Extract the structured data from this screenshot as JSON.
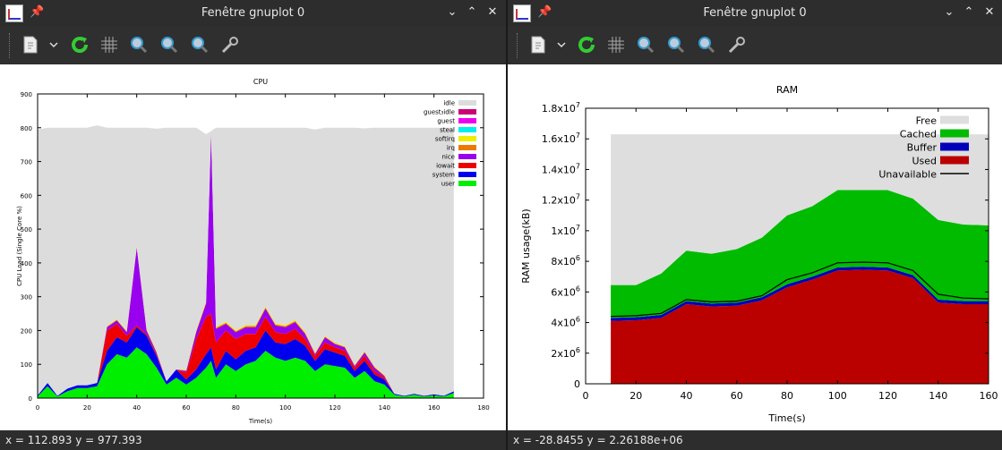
{
  "left_window": {
    "title": "Fenêtre gnuplot 0",
    "status": "x = 112.893 y = 977.393"
  },
  "right_window": {
    "title": "Fenêtre gnuplot 0",
    "status": "x = -28.8455 y = 2.26188e+06"
  },
  "window_controls": [
    "chevron-down-icon",
    "chevron-up-icon",
    "close-icon"
  ],
  "toolbar_icons": [
    "export-icon",
    "dropdown-arrow-icon",
    "replot-icon",
    "grid-icon",
    "zoom-prev-icon",
    "zoom-next-icon",
    "unzoom-icon",
    "settings-wrench-icon"
  ],
  "chart_data": [
    {
      "type": "area",
      "stacked": true,
      "title": "CPU",
      "xlabel": "Time(s)",
      "ylabel": "CPU Load (Single Core %)",
      "xlim": [
        0,
        180
      ],
      "ylim": [
        0,
        900
      ],
      "xticks": [
        0,
        20,
        40,
        60,
        80,
        100,
        120,
        140,
        160,
        180
      ],
      "yticks": [
        0,
        100,
        200,
        300,
        400,
        500,
        600,
        700,
        800,
        900
      ],
      "legend_position": "top-right",
      "x": [
        0,
        4,
        8,
        12,
        16,
        20,
        24,
        28,
        32,
        36,
        40,
        44,
        48,
        52,
        56,
        60,
        64,
        68,
        70,
        72,
        76,
        80,
        84,
        88,
        92,
        96,
        100,
        104,
        108,
        112,
        116,
        120,
        124,
        128,
        132,
        136,
        140,
        144,
        148,
        152,
        156,
        160,
        164,
        168
      ],
      "series": [
        {
          "name": "user",
          "color": "#00ee00",
          "values": [
            5,
            35,
            5,
            20,
            30,
            30,
            35,
            100,
            130,
            120,
            150,
            130,
            90,
            40,
            60,
            40,
            60,
            90,
            110,
            60,
            100,
            80,
            100,
            110,
            140,
            120,
            110,
            120,
            110,
            80,
            100,
            95,
            90,
            60,
            80,
            50,
            40,
            10,
            5,
            10,
            5,
            8,
            5,
            15
          ]
        },
        {
          "name": "system",
          "color": "#0000ee",
          "values": [
            3,
            10,
            2,
            8,
            8,
            8,
            10,
            40,
            50,
            45,
            60,
            55,
            35,
            10,
            25,
            15,
            25,
            40,
            40,
            25,
            40,
            35,
            40,
            40,
            60,
            45,
            50,
            55,
            45,
            30,
            45,
            40,
            35,
            20,
            30,
            20,
            15,
            3,
            2,
            3,
            2,
            3,
            2,
            5
          ]
        },
        {
          "name": "iowait",
          "color": "#ee0000",
          "values": [
            0,
            0,
            0,
            0,
            0,
            0,
            0,
            60,
            40,
            20,
            5,
            5,
            5,
            0,
            0,
            20,
            90,
            110,
            100,
            80,
            60,
            60,
            50,
            40,
            40,
            30,
            30,
            30,
            20,
            15,
            20,
            15,
            15,
            10,
            15,
            10,
            5,
            0,
            0,
            0,
            0,
            0,
            0,
            0
          ]
        },
        {
          "name": "nice",
          "color": "#9900ee",
          "values": [
            0,
            0,
            0,
            0,
            0,
            0,
            0,
            10,
            10,
            10,
            230,
            10,
            5,
            0,
            0,
            5,
            20,
            40,
            530,
            40,
            20,
            20,
            20,
            20,
            25,
            20,
            20,
            20,
            15,
            5,
            15,
            10,
            10,
            5,
            10,
            10,
            5,
            0,
            0,
            0,
            0,
            0,
            0,
            0
          ]
        },
        {
          "name": "irq",
          "color": "#ee7700",
          "values": [
            0,
            0,
            0,
            0,
            0,
            0,
            0,
            2,
            2,
            2,
            2,
            2,
            2,
            0,
            0,
            2,
            3,
            3,
            3,
            3,
            3,
            3,
            3,
            3,
            3,
            3,
            3,
            3,
            3,
            2,
            2,
            2,
            2,
            2,
            2,
            2,
            2,
            0,
            0,
            0,
            0,
            0,
            0,
            0
          ]
        },
        {
          "name": "softirq",
          "color": "#eeee00",
          "values": [
            0,
            0,
            0,
            0,
            0,
            0,
            0,
            2,
            2,
            2,
            2,
            2,
            2,
            0,
            0,
            2,
            3,
            3,
            3,
            3,
            3,
            3,
            3,
            3,
            3,
            3,
            3,
            3,
            3,
            2,
            2,
            2,
            2,
            2,
            2,
            2,
            2,
            0,
            0,
            0,
            0,
            0,
            0,
            0
          ]
        },
        {
          "name": "steal",
          "color": "#00eeee",
          "values": [
            0,
            0,
            0,
            0,
            0,
            0,
            0,
            0,
            0,
            0,
            0,
            0,
            0,
            0,
            0,
            0,
            0,
            0,
            0,
            0,
            0,
            0,
            0,
            0,
            0,
            0,
            0,
            0,
            0,
            0,
            0,
            0,
            0,
            0,
            0,
            0,
            0,
            0,
            0,
            0,
            0,
            0,
            0,
            0
          ]
        },
        {
          "name": "guest",
          "color": "#ee00ee",
          "values": [
            0,
            0,
            0,
            0,
            0,
            0,
            0,
            0,
            0,
            0,
            0,
            0,
            0,
            0,
            0,
            0,
            0,
            0,
            0,
            0,
            0,
            0,
            0,
            0,
            0,
            0,
            0,
            0,
            0,
            0,
            0,
            0,
            0,
            0,
            0,
            0,
            0,
            0,
            0,
            0,
            0,
            0,
            0,
            0
          ]
        },
        {
          "name": "guest_idle",
          "color": "#cc0077",
          "values": [
            0,
            0,
            0,
            0,
            0,
            0,
            0,
            0,
            0,
            0,
            0,
            0,
            0,
            0,
            0,
            0,
            0,
            0,
            0,
            0,
            0,
            0,
            0,
            0,
            0,
            0,
            0,
            0,
            0,
            0,
            0,
            0,
            0,
            0,
            0,
            0,
            0,
            0,
            0,
            0,
            0,
            0,
            0,
            0
          ]
        },
        {
          "name": "idle",
          "color": "#dcdcdc",
          "values": [
            787,
            755,
            793,
            772,
            762,
            762,
            762,
            586,
            566,
            601,
            351,
            596,
            658,
            750,
            715,
            716,
            599,
            495,
            4,
            589,
            574,
            599,
            584,
            584,
            529,
            579,
            584,
            569,
            604,
            661,
            616,
            636,
            646,
            701,
            659,
            706,
            731,
            787,
            793,
            787,
            793,
            789,
            793,
            780
          ]
        }
      ]
    },
    {
      "type": "area",
      "stacked": true,
      "title": "RAM",
      "xlabel": "Time(s)",
      "ylabel": "RAM usage(kB)",
      "xlim": [
        0,
        160
      ],
      "ylim": [
        0,
        18000000
      ],
      "xticks": [
        0,
        20,
        40,
        60,
        80,
        100,
        120,
        140,
        160
      ],
      "yticks": [
        0,
        2000000,
        4000000,
        6000000,
        8000000,
        10000000,
        12000000,
        14000000,
        16000000,
        18000000
      ],
      "ytick_labels": [
        {
          "base": "0",
          "exp": ""
        },
        {
          "base": "2x10",
          "exp": "6"
        },
        {
          "base": "4x10",
          "exp": "6"
        },
        {
          "base": "6x10",
          "exp": "6"
        },
        {
          "base": "8x10",
          "exp": "6"
        },
        {
          "base": "1x10",
          "exp": "7"
        },
        {
          "base": "1.2x10",
          "exp": "7"
        },
        {
          "base": "1.4x10",
          "exp": "7"
        },
        {
          "base": "1.6x10",
          "exp": "7"
        },
        {
          "base": "1.8x10",
          "exp": "7"
        }
      ],
      "legend_position": "top-right",
      "x": [
        10,
        20,
        30,
        40,
        50,
        60,
        70,
        80,
        90,
        100,
        110,
        120,
        130,
        140,
        150,
        160
      ],
      "series": [
        {
          "name": "Used",
          "color": "#bb0000",
          "values": [
            4100000,
            4150000,
            4300000,
            5200000,
            5050000,
            5100000,
            5450000,
            6300000,
            6800000,
            7400000,
            7450000,
            7400000,
            6900000,
            5300000,
            5200000,
            5200000
          ]
        },
        {
          "name": "Buffer",
          "color": "#0000bb",
          "values": [
            200000,
            200000,
            200000,
            200000,
            200000,
            200000,
            200000,
            200000,
            200000,
            200000,
            200000,
            200000,
            200000,
            200000,
            200000,
            200000
          ]
        },
        {
          "name": "Cached",
          "color": "#00bb00",
          "values": [
            2150000,
            2100000,
            2700000,
            3300000,
            3250000,
            3500000,
            3900000,
            4500000,
            4600000,
            5050000,
            5000000,
            5050000,
            5000000,
            5200000,
            5000000,
            4950000
          ]
        },
        {
          "name": "Free",
          "color": "#dedede",
          "values": [
            9850000,
            9850000,
            9100000,
            7600000,
            7800000,
            7500000,
            6750000,
            5300000,
            4700000,
            3650000,
            3650000,
            3650000,
            4200000,
            5600000,
            5900000,
            5950000
          ]
        }
      ],
      "line_series": [
        {
          "name": "Unavailable",
          "color": "#000000",
          "values": [
            4400000,
            4450000,
            4600000,
            5500000,
            5350000,
            5400000,
            5750000,
            6800000,
            7250000,
            7900000,
            7950000,
            7900000,
            7400000,
            5850000,
            5600000,
            5550000
          ]
        }
      ]
    }
  ]
}
